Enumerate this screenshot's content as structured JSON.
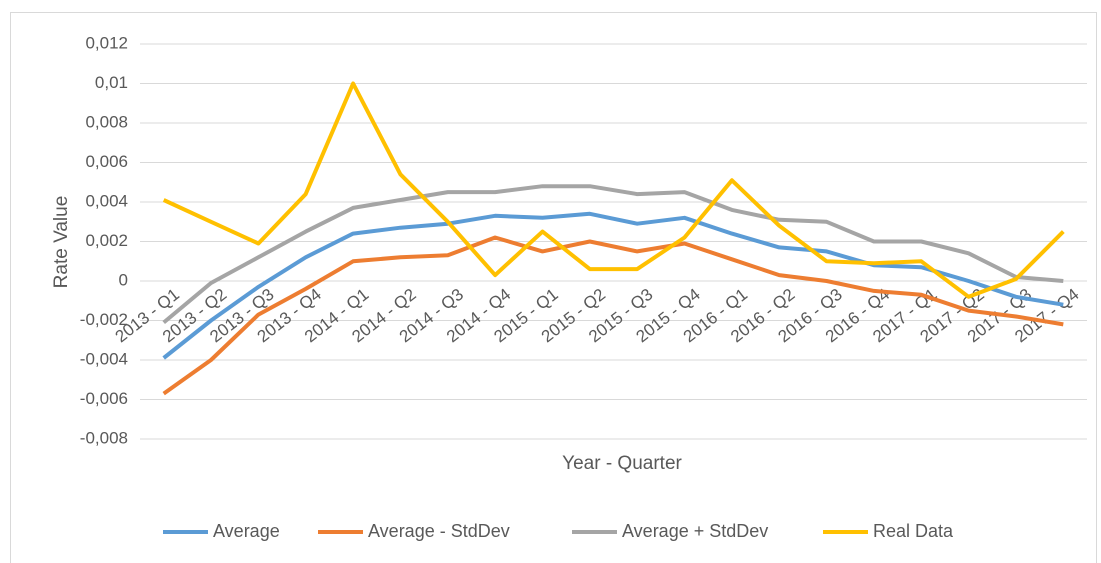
{
  "chart_data": {
    "type": "line",
    "y_label": "Rate Value",
    "x_label": "Year - Quarter",
    "categories": [
      "2013 - Q1",
      "2013 - Q2",
      "2013 - Q3",
      "2013 - Q4",
      "2014 - Q1",
      "2014 - Q2",
      "2014 - Q3",
      "2014 - Q4",
      "2015 - Q1",
      "2015 - Q2",
      "2015 - Q3",
      "2015 - Q4",
      "2016 - Q1",
      "2016 - Q2",
      "2016 - Q3",
      "2016 - Q4",
      "2017 - Q1",
      "2017 - Q2",
      "2017 - Q3",
      "2017 - Q4"
    ],
    "series": [
      {
        "name": "Average",
        "color": "#5b9bd5",
        "values": [
          -0.0039,
          -0.002,
          -0.0003,
          0.0012,
          0.0024,
          0.0027,
          0.0029,
          0.0033,
          0.0032,
          0.0034,
          0.0029,
          0.0032,
          0.0024,
          0.0017,
          0.0015,
          0.0008,
          0.0007,
          0.0,
          -0.0008,
          -0.0012
        ]
      },
      {
        "name": "Average - StdDev",
        "color": "#ed7d31",
        "values": [
          -0.0057,
          -0.004,
          -0.0017,
          -0.0004,
          0.001,
          0.0012,
          0.0013,
          0.0022,
          0.0015,
          0.002,
          0.0015,
          0.0019,
          0.0011,
          0.0003,
          0.0,
          -0.0005,
          -0.0007,
          -0.0015,
          -0.0018,
          -0.0022
        ]
      },
      {
        "name": "Average + StdDev",
        "color": "#a5a5a5",
        "values": [
          -0.0021,
          -0.0001,
          0.0012,
          0.0025,
          0.0037,
          0.0041,
          0.0045,
          0.0045,
          0.0048,
          0.0048,
          0.0044,
          0.0045,
          0.0036,
          0.0031,
          0.003,
          0.002,
          0.002,
          0.0014,
          0.0002,
          0.0
        ]
      },
      {
        "name": "Real Data",
        "color": "#ffc000",
        "values": [
          0.0041,
          0.003,
          0.0019,
          0.0044,
          0.01,
          0.0054,
          0.003,
          0.0003,
          0.0025,
          0.0006,
          0.0006,
          0.0022,
          0.0051,
          0.0028,
          0.001,
          0.0009,
          0.001,
          -0.0008,
          0.0001,
          0.0025
        ]
      }
    ],
    "ylim": [
      -0.008,
      0.012
    ],
    "yticks": [
      {
        "value": -0.008,
        "label": "-0,008"
      },
      {
        "value": -0.006,
        "label": "-0,006"
      },
      {
        "value": -0.004,
        "label": "-0,004"
      },
      {
        "value": -0.002,
        "label": "-0,002"
      },
      0,
      {
        "value": 0.002,
        "label": "0,002"
      },
      {
        "value": 0.004,
        "label": "0,004"
      },
      {
        "value": 0.006,
        "label": "0,006"
      },
      {
        "value": 0.008,
        "label": "0,008"
      },
      {
        "value": 0.01,
        "label": "0,01"
      },
      {
        "value": 0.012,
        "label": "0,012"
      }
    ],
    "grid": true,
    "legend": "bottom"
  }
}
